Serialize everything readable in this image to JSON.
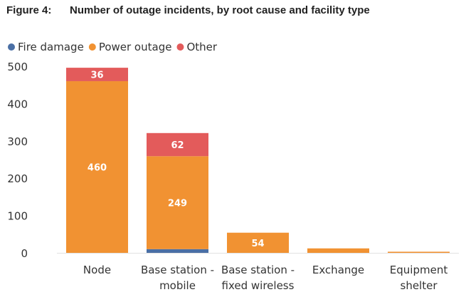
{
  "figure": {
    "label": "Figure 4:",
    "title": "Number of outage incidents, by root cause and facility type"
  },
  "chart_data": {
    "type": "bar",
    "stacked": true,
    "title": "Number of outage incidents, by root cause and facility type",
    "xlabel": "",
    "ylabel": "",
    "ylim": [
      0,
      500
    ],
    "yticks": [
      0,
      100,
      200,
      300,
      400,
      500
    ],
    "grid": false,
    "legend_position": "top-left",
    "categories": [
      [
        "Node"
      ],
      [
        "Base station -",
        "mobile"
      ],
      [
        "Base station -",
        "fixed wireless"
      ],
      [
        "Exchange"
      ],
      [
        "Equipment",
        "shelter"
      ]
    ],
    "series": [
      {
        "name": "Fire damage",
        "color": "#4a6fa5",
        "values": [
          0,
          10,
          0,
          0,
          0
        ],
        "labels": [
          "",
          "",
          "",
          "",
          ""
        ]
      },
      {
        "name": "Power outage",
        "color": "#f19232",
        "values": [
          460,
          249,
          54,
          12,
          3
        ],
        "labels": [
          "460",
          "249",
          "54",
          "",
          ""
        ]
      },
      {
        "name": "Other",
        "color": "#e35b5b",
        "values": [
          36,
          62,
          0,
          0,
          0
        ],
        "labels": [
          "36",
          "62",
          "",
          "",
          ""
        ]
      }
    ]
  }
}
